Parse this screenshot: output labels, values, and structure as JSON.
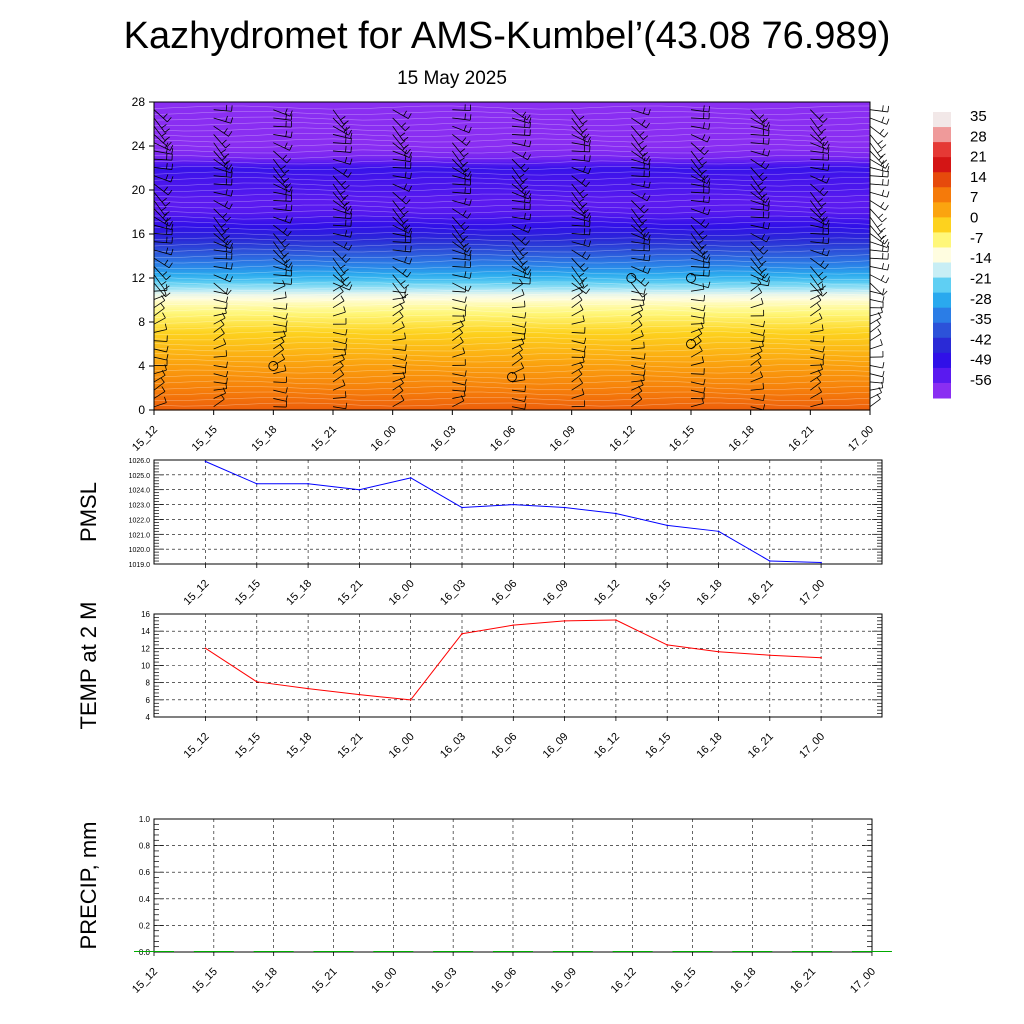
{
  "title": "Kazhydromet for AMS-Kumbel’(43.08 76.989)",
  "subtitle": "15 May 2025",
  "chart_data": [
    {
      "type": "heatmap",
      "ylim": [
        0,
        28
      ],
      "yticks": [
        "0",
        "4",
        "8",
        "12",
        "16",
        "20",
        "24",
        "28"
      ],
      "xticks": [
        "15_12",
        "15_15",
        "15_18",
        "15_21",
        "16_00",
        "16_03",
        "16_06",
        "16_09",
        "16_12",
        "16_15",
        "16_18",
        "16_21",
        "17_00"
      ],
      "colorbar": {
        "labels": [
          "35",
          "28",
          "21",
          "14",
          "7",
          "0",
          "-7",
          "-14",
          "-21",
          "-28",
          "-35",
          "-42",
          "-49",
          "-56"
        ],
        "colors": [
          "#f2e8e8",
          "#ef9a9a",
          "#e53935",
          "#d41515",
          "#e64a0c",
          "#f57a0a",
          "#fba40f",
          "#fdd21e",
          "#fff77a",
          "#fffde0",
          "#c8eef5",
          "#5fcff3",
          "#2aa9ee",
          "#2b7de6",
          "#2c52d9",
          "#2a2ad6",
          "#3010e8",
          "#5a1af0",
          "#8a2ef2"
        ],
        "range": [
          -60,
          38
        ]
      },
      "temperature_profile": {
        "heights": [
          0,
          1,
          2,
          3,
          4,
          5,
          6,
          7,
          8,
          9,
          10,
          10.5,
          11,
          11.5,
          12,
          13,
          14,
          15,
          16,
          17,
          18,
          19,
          20,
          21,
          22,
          23,
          24,
          26,
          28
        ],
        "values": [
          14,
          12,
          10,
          8,
          6,
          4,
          2,
          0,
          -3,
          -6,
          -10,
          -13,
          -18,
          -21,
          -25,
          -31,
          -36,
          -41,
          -46,
          -50,
          -54,
          -55,
          -53,
          -52,
          -50,
          -58,
          -60,
          -60,
          -60
        ]
      },
      "calm_markers": [
        {
          "x": "15_18",
          "y": 4
        },
        {
          "x": "16_06",
          "y": 3
        },
        {
          "x": "16_12",
          "y": 12
        },
        {
          "x": "16_15",
          "y": 12
        },
        {
          "x": "16_15",
          "y": 6
        }
      ]
    },
    {
      "type": "line",
      "ylabel": "PMSL",
      "ylim": [
        1019.0,
        1026.0
      ],
      "yticks": [
        "1019.0",
        "1020.0",
        "1021.0",
        "1022.0",
        "1023.0",
        "1024.0",
        "1025.0",
        "1026.0"
      ],
      "categories": [
        "15_12",
        "15_15",
        "15_18",
        "15_21",
        "16_00",
        "16_03",
        "16_06",
        "16_09",
        "16_12",
        "16_15",
        "16_18",
        "16_21",
        "17_00"
      ],
      "values": [
        1025.9,
        1024.4,
        1024.4,
        1024.0,
        1024.8,
        1022.8,
        1023.0,
        1022.8,
        1022.4,
        1021.6,
        1021.2,
        1019.2,
        1019.1
      ],
      "color": "#0000ff"
    },
    {
      "type": "line",
      "ylabel": "TEMP at 2 M",
      "ylim": [
        4,
        16
      ],
      "yticks": [
        "4",
        "6",
        "8",
        "10",
        "12",
        "14",
        "16"
      ],
      "categories": [
        "15_12",
        "15_15",
        "15_18",
        "15_21",
        "16_00",
        "16_03",
        "16_06",
        "16_09",
        "16_12",
        "16_15",
        "16_18",
        "16_21",
        "17_00"
      ],
      "values": [
        12.0,
        8.1,
        7.3,
        6.6,
        6.0,
        13.7,
        14.7,
        15.2,
        15.3,
        12.4,
        11.6,
        11.2,
        10.9
      ],
      "color": "#ff0000"
    },
    {
      "type": "bar",
      "ylabel": "PRECIP, mm",
      "ylim": [
        0.0,
        1.0
      ],
      "yticks": [
        "0.0",
        "0.2",
        "0.4",
        "0.6",
        "0.8",
        "1.0"
      ],
      "categories": [
        "15_12",
        "15_15",
        "15_18",
        "15_21",
        "16_00",
        "16_03",
        "16_06",
        "16_09",
        "16_12",
        "16_15",
        "16_18",
        "16_21",
        "17_00"
      ],
      "values": [
        0,
        0,
        0,
        0,
        0,
        0,
        0,
        0,
        0,
        0,
        0,
        0,
        0
      ],
      "color": "#00aa00"
    }
  ]
}
